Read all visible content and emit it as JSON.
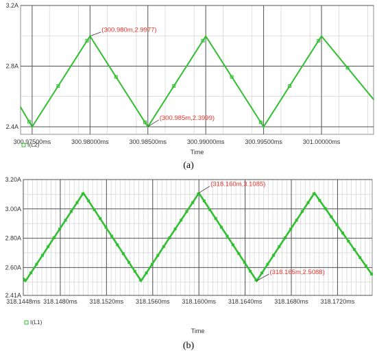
{
  "chart_data": [
    {
      "type": "line",
      "caption": "(a)",
      "xlabel": "Time",
      "ylabel": "",
      "x_tick_labels": [
        "300.97500ms",
        "300.98000ms",
        "300.98500ms",
        "300.99000ms",
        "300.99500ms",
        "301.00000ms"
      ],
      "y_tick_labels": [
        "3.2A",
        "2.8A",
        "2.4A"
      ],
      "y_ticks": [
        3.2,
        2.8,
        2.4
      ],
      "xlim": [
        300.974,
        301.0045
      ],
      "ylim": [
        2.35,
        3.2
      ],
      "grid": true,
      "legend_position": "bottom-left",
      "series": [
        {
          "name": "I(L2)",
          "color": "#2fbf2f",
          "x": [
            300.974,
            300.975,
            300.98,
            300.985,
            300.99,
            300.995,
            301.0,
            301.0045
          ],
          "y": [
            2.53,
            2.3999,
            2.9977,
            2.3999,
            2.9977,
            2.3999,
            2.9977,
            2.58
          ]
        }
      ],
      "annotations": [
        {
          "text": "(300.980m,2.9977)",
          "x": 300.98,
          "y": 2.9977,
          "color": "#e8332b"
        },
        {
          "text": "(300.985m,2.3999)",
          "x": 300.985,
          "y": 2.3999,
          "color": "#e8332b"
        }
      ]
    },
    {
      "type": "line",
      "caption": "(b)",
      "xlabel": "Time",
      "ylabel": "",
      "x_tick_labels": [
        "318.1448ms",
        "318.1480ms",
        "318.1520ms",
        "318.1560ms",
        "318.1600ms",
        "318.1640ms",
        "318.1680ms",
        "318.1720ms"
      ],
      "y_tick_labels": [
        "3.20A",
        "3.00A",
        "2.80A",
        "2.60A",
        "2.41A"
      ],
      "y_ticks": [
        3.2,
        3.0,
        2.8,
        2.6,
        2.41
      ],
      "xlim": [
        318.1448,
        318.175
      ],
      "ylim": [
        2.41,
        3.2
      ],
      "grid": true,
      "legend_position": "bottom-left",
      "series": [
        {
          "name": "I(L1)",
          "color": "#2fbf2f",
          "x": [
            318.1448,
            318.145,
            318.15,
            318.155,
            318.16,
            318.165,
            318.17,
            318.175
          ],
          "y": [
            2.53,
            2.5088,
            3.1085,
            2.5088,
            3.1085,
            2.5088,
            3.1085,
            2.55
          ]
        }
      ],
      "annotations": [
        {
          "text": "(318.160m,3.1085)",
          "x": 318.16,
          "y": 3.1085,
          "color": "#e8332b"
        },
        {
          "text": "(318.165m,2.5088)",
          "x": 318.165,
          "y": 2.5088,
          "color": "#e8332b"
        }
      ]
    }
  ]
}
